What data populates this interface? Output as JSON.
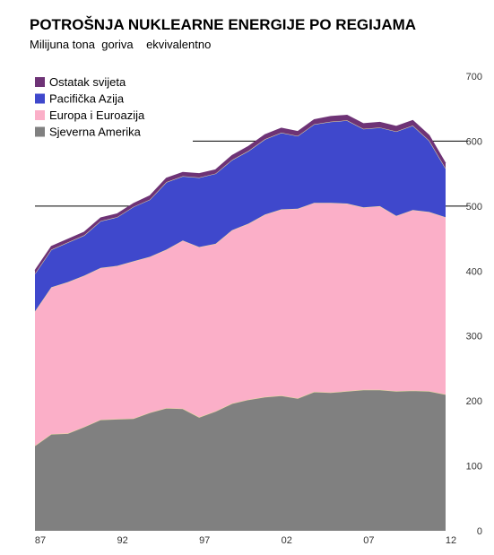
{
  "chart_data": {
    "type": "area",
    "stacked": true,
    "title": "POTROŠNJA NUKLEARNE ENERGIJE PO REGIJAMA",
    "subtitle": "Milijuna tona  goriva    ekvivalentno",
    "x": [
      1987,
      1988,
      1989,
      1990,
      1991,
      1992,
      1993,
      1994,
      1995,
      1996,
      1997,
      1998,
      1999,
      2000,
      2001,
      2002,
      2003,
      2004,
      2005,
      2006,
      2007,
      2008,
      2009,
      2010,
      2011,
      2012
    ],
    "x_tick_labels": [
      "87",
      "92",
      "97",
      "02",
      "07",
      "12"
    ],
    "x_tick_values": [
      1987,
      1992,
      1997,
      2002,
      2007,
      2012
    ],
    "y_tick_labels": [
      "0",
      "100",
      "200",
      "300",
      "400",
      "500",
      "600",
      "700"
    ],
    "y_tick_values": [
      0,
      100,
      200,
      300,
      400,
      500,
      600,
      700
    ],
    "ylim": [
      0,
      700
    ],
    "legend_position": "top-left",
    "series": [
      {
        "name": "Sjeverna Amerika",
        "color": "#808080",
        "values": [
          131,
          149,
          150,
          160,
          171,
          172,
          173,
          182,
          189,
          188,
          175,
          184,
          196,
          202,
          206,
          208,
          204,
          214,
          213,
          215,
          217,
          217,
          215,
          216,
          215,
          210
        ]
      },
      {
        "name": "Europa i Euroazija",
        "color": "#fbafc8",
        "values": [
          207,
          226,
          233,
          233,
          234,
          236,
          242,
          240,
          244,
          259,
          262,
          258,
          267,
          271,
          281,
          287,
          292,
          291,
          292,
          289,
          281,
          283,
          270,
          278,
          276,
          273
        ]
      },
      {
        "name": "Pacifička Azija",
        "color": "#3f48cc",
        "values": [
          58,
          58,
          61,
          62,
          72,
          75,
          84,
          88,
          104,
          99,
          107,
          108,
          108,
          112,
          116,
          118,
          112,
          121,
          125,
          128,
          121,
          121,
          130,
          130,
          110,
          75
        ]
      },
      {
        "name": "Ostatak svijeta",
        "color": "#6e3376",
        "values": [
          5,
          5,
          5,
          5,
          5,
          5,
          5,
          6,
          6,
          6,
          6,
          6,
          7,
          7,
          7,
          7,
          7,
          7,
          8,
          8,
          8,
          8,
          8,
          8,
          8,
          8
        ]
      }
    ]
  }
}
